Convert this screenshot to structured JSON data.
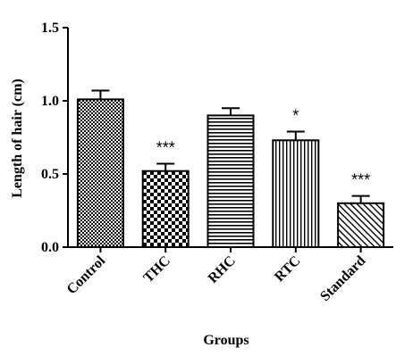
{
  "chart_data": {
    "type": "bar",
    "xlabel": "Groups",
    "ylabel": "Length of hair (cm)",
    "ylim": [
      0,
      1.5
    ],
    "yticks": [
      "0.0",
      "0.5",
      "1.0",
      "1.5"
    ],
    "categories": [
      "Control",
      "THC",
      "RHC",
      "RTC",
      "Standard"
    ],
    "values": [
      1.01,
      0.52,
      0.9,
      0.73,
      0.3
    ],
    "errors": [
      0.06,
      0.05,
      0.05,
      0.06,
      0.05
    ],
    "significance": [
      "",
      "***",
      "",
      "*",
      "***"
    ],
    "patterns": [
      "checker-fine",
      "checker-coarse",
      "horizontal-lines",
      "vertical-lines",
      "diagonal-lines"
    ],
    "grid": false,
    "legend": "none"
  }
}
